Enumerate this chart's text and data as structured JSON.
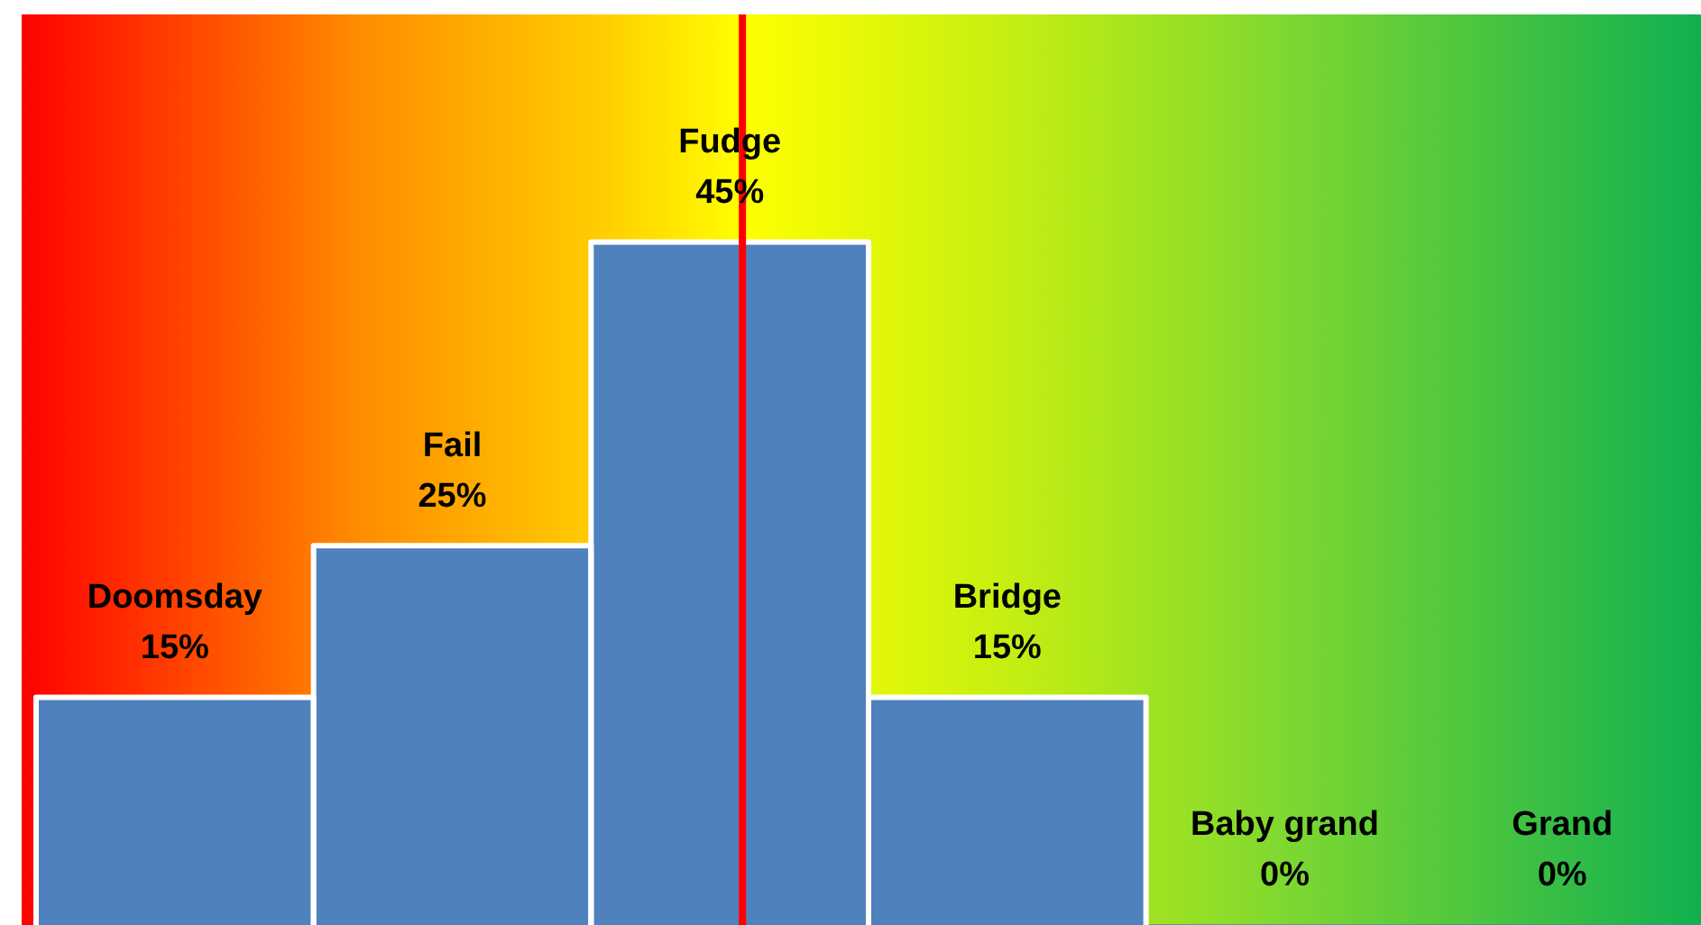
{
  "chart_data": {
    "type": "bar",
    "categories": [
      "Doomsday",
      "Fail",
      "Fudge",
      "Bridge",
      "Baby grand",
      "Grand"
    ],
    "values": [
      15,
      25,
      45,
      15,
      0,
      0
    ],
    "color": "#4f81bd",
    "value_labels": [
      "15%",
      "25%",
      "45%",
      "15%",
      "0%",
      "0%"
    ],
    "tick_labels": false,
    "grid": false,
    "legend": false,
    "ref_lines": [
      {
        "axis": "x",
        "value": "Fudge",
        "color": "#ff0000"
      }
    ]
  }
}
